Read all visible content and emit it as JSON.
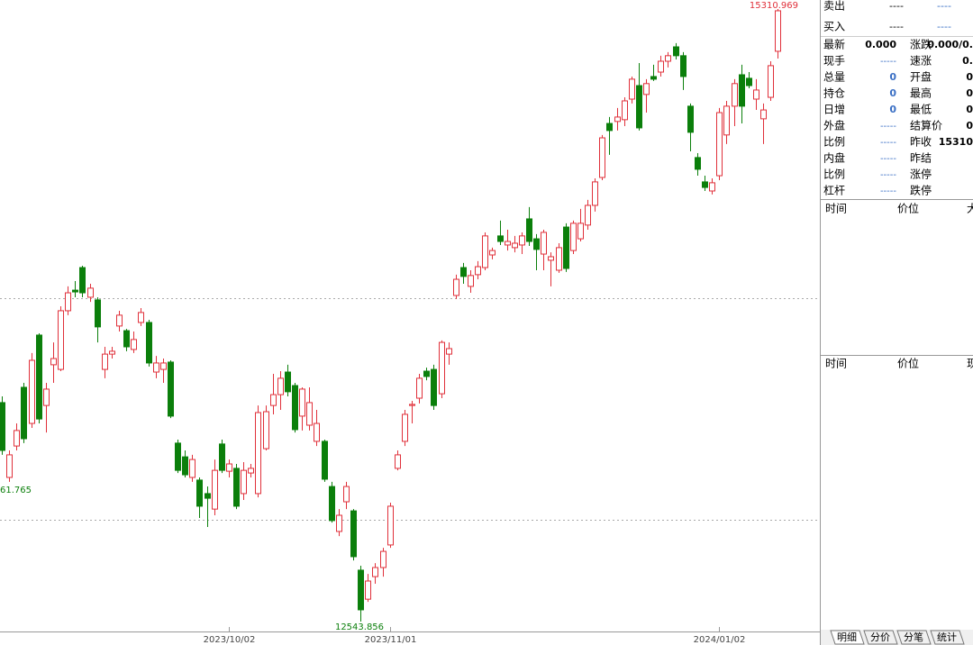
{
  "chart_data": {
    "type": "candlestick",
    "up_color": "#e0303a",
    "down_color": "#0b7f0b",
    "annotations": [
      "15310.969",
      "61.765",
      "12543.856"
    ],
    "categories": [
      null,
      null,
      null,
      null,
      null,
      null,
      null,
      null,
      null,
      null,
      null,
      null,
      null,
      null,
      null,
      null,
      null,
      null,
      null,
      null,
      null,
      null,
      null,
      null,
      null,
      null,
      null,
      null,
      null,
      null,
      null,
      "2023/10/02",
      null,
      null,
      null,
      null,
      null,
      null,
      null,
      null,
      null,
      null,
      null,
      null,
      null,
      null,
      null,
      null,
      null,
      null,
      null,
      null,
      null,
      "2023/11/01",
      null,
      null,
      null,
      null,
      null,
      null,
      null,
      null,
      null,
      null,
      null,
      null,
      null,
      null,
      null,
      null,
      null,
      null,
      null,
      null,
      null,
      null,
      null,
      null,
      null,
      null,
      null,
      null,
      null,
      null,
      null,
      null,
      null,
      null,
      null,
      null,
      null,
      null,
      null,
      null,
      null,
      null,
      null,
      null,
      "2024/01/02",
      null,
      null,
      null,
      null,
      null,
      null,
      null,
      null,
      null,
      null,
      null,
      null
    ],
    "ohlc": [
      [
        13533,
        13561,
        13297,
        13317
      ],
      [
        13195,
        13317,
        13175,
        13297
      ],
      [
        13337,
        13439,
        13317,
        13407
      ],
      [
        13602,
        13622,
        13350,
        13370
      ],
      [
        13439,
        13757,
        13419,
        13724
      ],
      [
        13838,
        13846,
        13439,
        13459
      ],
      [
        13520,
        13622,
        13398,
        13594
      ],
      [
        13704,
        13805,
        13622,
        13732
      ],
      [
        13683,
        13968,
        13675,
        13948
      ],
      [
        13948,
        14058,
        13928,
        14029
      ],
      [
        14041,
        14082,
        14009,
        14033
      ],
      [
        14143,
        14151,
        14009,
        14029
      ],
      [
        14009,
        14070,
        13988,
        14050
      ],
      [
        13997,
        14009,
        13805,
        13875
      ],
      [
        13683,
        13785,
        13643,
        13752
      ],
      [
        13752,
        13785,
        13732,
        13765
      ],
      [
        13879,
        13948,
        13854,
        13928
      ],
      [
        13858,
        13866,
        13765,
        13785
      ],
      [
        13773,
        13854,
        13757,
        13818
      ],
      [
        13895,
        13960,
        13879,
        13940
      ],
      [
        13895,
        13907,
        13696,
        13712
      ],
      [
        13671,
        13744,
        13643,
        13712
      ],
      [
        13683,
        13732,
        13622,
        13712
      ],
      [
        13716,
        13724,
        13463,
        13472
      ],
      [
        13350,
        13366,
        13215,
        13227
      ],
      [
        13288,
        13317,
        13195,
        13207
      ],
      [
        13195,
        13297,
        13175,
        13276
      ],
      [
        13183,
        13195,
        13012,
        13065
      ],
      [
        13122,
        13154,
        12971,
        13101
      ],
      [
        13052,
        13276,
        13024,
        13227
      ],
      [
        13346,
        13366,
        13215,
        13227
      ],
      [
        13223,
        13276,
        13195,
        13256
      ],
      [
        13236,
        13256,
        13052,
        13065
      ],
      [
        13122,
        13264,
        13093,
        13227
      ],
      [
        13215,
        13256,
        13195,
        13236
      ],
      [
        13122,
        13520,
        13105,
        13488
      ],
      [
        13325,
        13520,
        13317,
        13492
      ],
      [
        13520,
        13663,
        13480,
        13569
      ],
      [
        13569,
        13675,
        13500,
        13643
      ],
      [
        13671,
        13704,
        13561,
        13582
      ],
      [
        13610,
        13622,
        13398,
        13411
      ],
      [
        13472,
        13602,
        13407,
        13594
      ],
      [
        13431,
        13602,
        13407,
        13533
      ],
      [
        13358,
        13500,
        13337,
        13439
      ],
      [
        13358,
        13366,
        13175,
        13187
      ],
      [
        13154,
        13175,
        12991,
        13000
      ],
      [
        12951,
        13052,
        12930,
        13024
      ],
      [
        13085,
        13175,
        13052,
        13154
      ],
      [
        13044,
        13052,
        12820,
        12837
      ],
      [
        12776,
        12796,
        12543.856,
        12597
      ],
      [
        12645,
        12759,
        12633,
        12727
      ],
      [
        12747,
        12808,
        12715,
        12788
      ],
      [
        12788,
        12877,
        12747,
        12861
      ],
      [
        12890,
        13081,
        12877,
        13065
      ],
      [
        13236,
        13317,
        13227,
        13297
      ],
      [
        13358,
        13500,
        13337,
        13480
      ],
      [
        13520,
        13541,
        13439,
        13525
      ],
      [
        13553,
        13663,
        13529,
        13643
      ],
      [
        13675,
        13691,
        13634,
        13651
      ],
      [
        13683,
        13704,
        13500,
        13520
      ],
      [
        13573,
        13814,
        13553,
        13805
      ],
      [
        13752,
        13805,
        13704,
        13777
      ],
      [
        14017,
        14111,
        14001,
        14090
      ],
      [
        14143,
        14164,
        14070,
        14103
      ],
      [
        14058,
        14131,
        14029,
        14107
      ],
      [
        14111,
        14172,
        14090,
        14147
      ],
      [
        14143,
        14302,
        14131,
        14286
      ],
      [
        14200,
        14233,
        14180,
        14220
      ],
      [
        14286,
        14355,
        14245,
        14261
      ],
      [
        14245,
        14314,
        14220,
        14261
      ],
      [
        14233,
        14286,
        14212,
        14253
      ],
      [
        14245,
        14302,
        14204,
        14286
      ],
      [
        14363,
        14416,
        14241,
        14261
      ],
      [
        14273,
        14294,
        14131,
        14225
      ],
      [
        14204,
        14314,
        14131,
        14302
      ],
      [
        14176,
        14212,
        14058,
        14192
      ],
      [
        14131,
        14253,
        14119,
        14233
      ],
      [
        14326,
        14343,
        14123,
        14139
      ],
      [
        14220,
        14355,
        14204,
        14343
      ],
      [
        14273,
        14408,
        14261,
        14343
      ],
      [
        14335,
        14449,
        14314,
        14424
      ],
      [
        14424,
        14546,
        14396,
        14530
      ],
      [
        14550,
        14742,
        14538,
        14729
      ],
      [
        14794,
        14823,
        14652,
        14762
      ],
      [
        14803,
        14864,
        14762,
        14823
      ],
      [
        14811,
        14912,
        14782,
        14896
      ],
      [
        14904,
        15006,
        14884,
        14994
      ],
      [
        14965,
        15067,
        14762,
        14774
      ],
      [
        14925,
        14994,
        14843,
        14974
      ],
      [
        15006,
        15059,
        14986,
        14994
      ],
      [
        15026,
        15100,
        15006,
        15075
      ],
      [
        15075,
        15116,
        15047,
        15100
      ],
      [
        15140,
        15157,
        15083,
        15100
      ],
      [
        15100,
        15116,
        14945,
        15006
      ],
      [
        14872,
        14884,
        14668,
        14754
      ],
      [
        14640,
        14660,
        14558,
        14587
      ],
      [
        14530,
        14558,
        14489,
        14505
      ],
      [
        14489,
        14546,
        14473,
        14526
      ],
      [
        14558,
        14864,
        14538,
        14843
      ],
      [
        14742,
        14896,
        14701,
        14872
      ],
      [
        14872,
        14994,
        14782,
        14974
      ],
      [
        15014,
        15059,
        14794,
        14872
      ],
      [
        14998,
        15026,
        14953,
        14965
      ],
      [
        14904,
        14994,
        14855,
        14945
      ],
      [
        14815,
        14884,
        14701,
        14855
      ],
      [
        14912,
        15075,
        14896,
        15055
      ],
      [
        15120,
        15310.969,
        15087,
        15303
      ]
    ]
  },
  "panel": {
    "quote_rows": [
      [
        "卖出",
        "----",
        "----"
      ],
      [
        "买入",
        "----",
        "----"
      ]
    ],
    "rows": [
      [
        "最新",
        "0.000",
        "涨跌",
        "0.000/0."
      ],
      [
        "现手",
        "-----",
        "速涨",
        "0."
      ],
      [
        "总量",
        "0",
        "开盘",
        "0"
      ],
      [
        "持仓",
        "0",
        "最高",
        "0"
      ],
      [
        "日增",
        "0",
        "最低",
        "0"
      ],
      [
        "外盘",
        "-----",
        "结算价",
        "0"
      ],
      [
        "比例",
        "-----",
        "昨收",
        "15310"
      ],
      [
        "内盘",
        "-----",
        "昨结"
      ],
      [
        "比例",
        "-----",
        "涨停"
      ],
      [
        "杠杆",
        "-----",
        "跌停"
      ]
    ],
    "headers": [
      [
        "时间",
        "价位",
        "大"
      ],
      [
        "时间",
        "价位",
        "现"
      ]
    ],
    "tabs": [
      "明细",
      "分价",
      "分笔",
      "统计"
    ]
  }
}
